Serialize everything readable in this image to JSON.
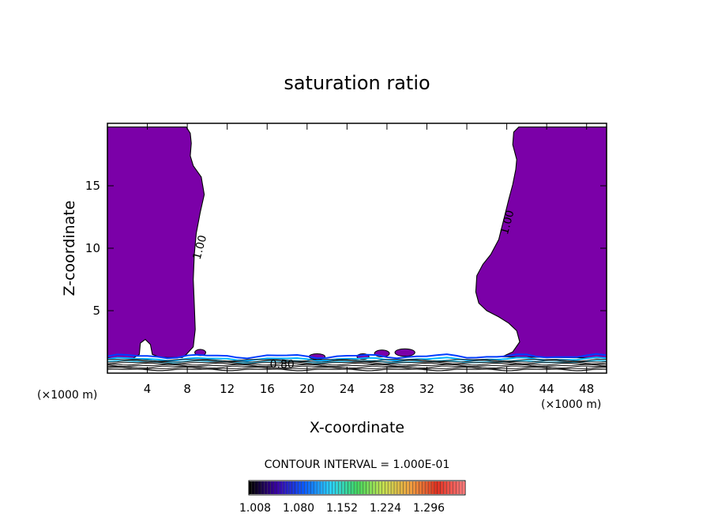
{
  "chart_data": {
    "type": "contour",
    "title": "saturation ratio",
    "xlabel": "X-coordinate",
    "ylabel": "Z-coordinate",
    "x_unit_label": "(×1000 m)",
    "xlim": [
      0,
      50
    ],
    "ylim": [
      0,
      20
    ],
    "x_ticks": [
      4,
      8,
      12,
      16,
      20,
      24,
      28,
      32,
      36,
      40,
      44,
      48
    ],
    "y_ticks": [
      5,
      10,
      15
    ],
    "contour_labels": [
      {
        "text": "1.00",
        "x": 9.6,
        "z": 10.0
      },
      {
        "text": "1.00",
        "x": 40.4,
        "z": 12.0
      },
      {
        "text": "0.80",
        "x": 17.5,
        "z": 0.4
      }
    ],
    "contour_interval_text": "CONTOUR INTERVAL = 1.000E-01",
    "colorbar": {
      "tick_labels": [
        "1.008",
        "1.080",
        "1.152",
        "1.224",
        "1.296"
      ],
      "colors": [
        "#000000",
        "#3a00a6",
        "#0a5aff",
        "#2bd1ff",
        "#40d860",
        "#c8e050",
        "#f0a040",
        "#e03020",
        "#ff7a7a"
      ]
    },
    "fill_color": "#7b00a8",
    "left_region_boundary": [
      [
        0,
        19.7
      ],
      [
        7.9,
        19.7
      ],
      [
        8.3,
        19.2
      ],
      [
        8.4,
        18.4
      ],
      [
        8.3,
        17.4
      ],
      [
        8.6,
        16.6
      ],
      [
        9.4,
        15.7
      ],
      [
        9.7,
        14.3
      ],
      [
        9.3,
        12.9
      ],
      [
        8.9,
        11.2
      ],
      [
        8.7,
        9.5
      ],
      [
        8.6,
        7.5
      ],
      [
        8.7,
        5.5
      ],
      [
        8.8,
        3.5
      ],
      [
        8.6,
        2.1
      ],
      [
        7.9,
        1.5
      ],
      [
        7.5,
        1.25
      ],
      [
        6.0,
        1.25
      ],
      [
        5.2,
        1.3
      ],
      [
        4.5,
        1.5
      ],
      [
        4.3,
        2.3
      ],
      [
        3.8,
        2.7
      ],
      [
        3.3,
        2.4
      ],
      [
        3.2,
        1.5
      ],
      [
        2.6,
        1.2
      ],
      [
        0,
        1.2
      ]
    ],
    "right_region_boundary": [
      [
        50,
        19.7
      ],
      [
        41.2,
        19.7
      ],
      [
        40.7,
        19.3
      ],
      [
        40.6,
        18.3
      ],
      [
        41.0,
        17.1
      ],
      [
        40.9,
        16.3
      ],
      [
        40.6,
        15.1
      ],
      [
        40.2,
        13.9
      ],
      [
        39.7,
        12.3
      ],
      [
        39.2,
        10.7
      ],
      [
        38.4,
        9.5
      ],
      [
        37.6,
        8.7
      ],
      [
        37.0,
        7.8
      ],
      [
        36.9,
        6.5
      ],
      [
        37.2,
        5.6
      ],
      [
        38.0,
        5.0
      ],
      [
        39.2,
        4.5
      ],
      [
        40.2,
        4.0
      ],
      [
        41.0,
        3.4
      ],
      [
        41.3,
        2.5
      ],
      [
        40.6,
        1.7
      ],
      [
        39.5,
        1.3
      ],
      [
        50,
        1.2
      ]
    ],
    "small_patches": [
      {
        "x": 9.3,
        "z": 1.4,
        "w": 1.1,
        "h": 0.5
      },
      {
        "x": 21.0,
        "z": 1.1,
        "w": 1.6,
        "h": 0.45
      },
      {
        "x": 25.6,
        "z": 1.1,
        "w": 1.2,
        "h": 0.45
      },
      {
        "x": 27.5,
        "z": 1.3,
        "w": 1.5,
        "h": 0.55
      },
      {
        "x": 29.8,
        "z": 1.35,
        "w": 2.0,
        "h": 0.6
      }
    ]
  }
}
